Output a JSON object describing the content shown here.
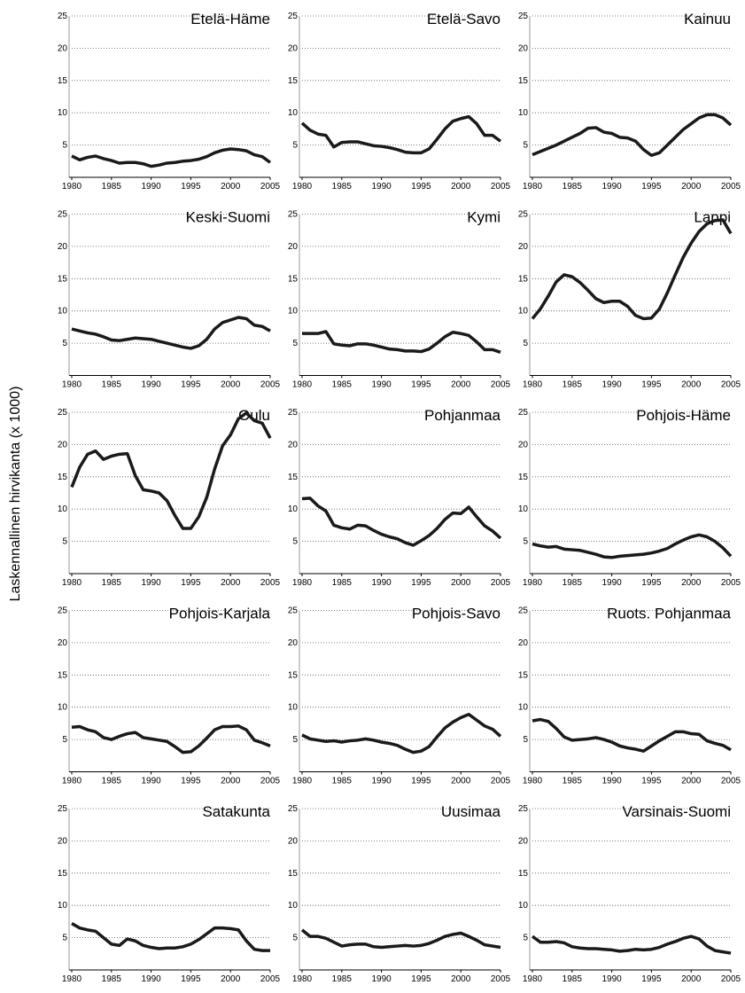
{
  "y_label": "Laskennallinen hirvikanta (x 1000)",
  "chart_data": [
    {
      "type": "line",
      "title": "Etelä-Häme",
      "x": [
        1980,
        1981,
        1982,
        1983,
        1984,
        1985,
        1986,
        1987,
        1988,
        1989,
        1990,
        1991,
        1992,
        1993,
        1994,
        1995,
        1996,
        1997,
        1998,
        1999,
        2000,
        2001,
        2002,
        2003,
        2004,
        2005
      ],
      "values": [
        3.3,
        2.7,
        3.1,
        3.3,
        2.9,
        2.6,
        2.2,
        2.3,
        2.3,
        2.1,
        1.7,
        1.9,
        2.2,
        2.3,
        2.5,
        2.6,
        2.8,
        3.2,
        3.8,
        4.2,
        4.4,
        4.3,
        4.1,
        3.5,
        3.2,
        2.3
      ],
      "color": "#1a1a1a",
      "xlim": [
        1980,
        2005
      ],
      "xticks": [
        1980,
        1985,
        1990,
        1995,
        2000,
        2005
      ],
      "ylim": [
        0,
        25
      ],
      "yticks": [
        5,
        10,
        15,
        20,
        25
      ],
      "grid": true
    },
    {
      "type": "line",
      "title": "Etelä-Savo",
      "x": [
        1980,
        1981,
        1982,
        1983,
        1984,
        1985,
        1986,
        1987,
        1988,
        1989,
        1990,
        1991,
        1992,
        1993,
        1994,
        1995,
        1996,
        1997,
        1998,
        1999,
        2000,
        2001,
        2002,
        2003,
        2004,
        2005
      ],
      "values": [
        8.4,
        7.3,
        6.7,
        6.5,
        4.7,
        5.4,
        5.5,
        5.5,
        5.2,
        4.9,
        4.8,
        4.6,
        4.3,
        3.9,
        3.8,
        3.8,
        4.4,
        5.9,
        7.5,
        8.7,
        9.1,
        9.4,
        8.3,
        6.5,
        6.5,
        5.6
      ],
      "color": "#1a1a1a",
      "xlim": [
        1980,
        2005
      ],
      "xticks": [
        1980,
        1985,
        1990,
        1995,
        2000,
        2005
      ],
      "ylim": [
        0,
        25
      ],
      "yticks": [
        5,
        10,
        15,
        20,
        25
      ],
      "grid": true
    },
    {
      "type": "line",
      "title": "Kainuu",
      "x": [
        1980,
        1981,
        1982,
        1983,
        1984,
        1985,
        1986,
        1987,
        1988,
        1989,
        1990,
        1991,
        1992,
        1993,
        1994,
        1995,
        1996,
        1997,
        1998,
        1999,
        2000,
        2001,
        2002,
        2003,
        2004,
        2005
      ],
      "values": [
        3.5,
        4.0,
        4.5,
        5.0,
        5.6,
        6.2,
        6.8,
        7.6,
        7.7,
        7.0,
        6.8,
        6.2,
        6.1,
        5.6,
        4.3,
        3.4,
        3.8,
        5.0,
        6.2,
        7.4,
        8.3,
        9.2,
        9.7,
        9.7,
        9.2,
        8.1
      ],
      "color": "#1a1a1a",
      "xlim": [
        1980,
        2005
      ],
      "xticks": [
        1980,
        1985,
        1990,
        1995,
        2000,
        2005
      ],
      "ylim": [
        0,
        25
      ],
      "yticks": [
        5,
        10,
        15,
        20,
        25
      ],
      "grid": true
    },
    {
      "type": "line",
      "title": "Keski-Suomi",
      "x": [
        1980,
        1981,
        1982,
        1983,
        1984,
        1985,
        1986,
        1987,
        1988,
        1989,
        1990,
        1991,
        1992,
        1993,
        1994,
        1995,
        1996,
        1997,
        1998,
        1999,
        2000,
        2001,
        2002,
        2003,
        2004,
        2005
      ],
      "values": [
        7.2,
        6.9,
        6.6,
        6.4,
        6.0,
        5.5,
        5.4,
        5.6,
        5.8,
        5.7,
        5.6,
        5.3,
        5.0,
        4.7,
        4.4,
        4.2,
        4.6,
        5.6,
        7.2,
        8.2,
        8.6,
        9.0,
        8.8,
        7.8,
        7.6,
        6.9
      ],
      "color": "#1a1a1a",
      "xlim": [
        1980,
        2005
      ],
      "xticks": [
        1980,
        1985,
        1990,
        1995,
        2000,
        2005
      ],
      "ylim": [
        0,
        25
      ],
      "yticks": [
        5,
        10,
        15,
        20,
        25
      ],
      "grid": true
    },
    {
      "type": "line",
      "title": "Kymi",
      "x": [
        1980,
        1981,
        1982,
        1983,
        1984,
        1985,
        1986,
        1987,
        1988,
        1989,
        1990,
        1991,
        1992,
        1993,
        1994,
        1995,
        1996,
        1997,
        1998,
        1999,
        2000,
        2001,
        2002,
        2003,
        2004,
        2005
      ],
      "values": [
        6.5,
        6.5,
        6.5,
        6.8,
        4.9,
        4.7,
        4.6,
        4.9,
        4.9,
        4.7,
        4.4,
        4.1,
        4.0,
        3.8,
        3.8,
        3.7,
        4.1,
        5.0,
        6.0,
        6.7,
        6.5,
        6.2,
        5.2,
        4.0,
        4.0,
        3.6
      ],
      "color": "#1a1a1a",
      "xlim": [
        1980,
        2005
      ],
      "xticks": [
        1980,
        1985,
        1990,
        1995,
        2000,
        2005
      ],
      "ylim": [
        0,
        25
      ],
      "yticks": [
        5,
        10,
        15,
        20,
        25
      ],
      "grid": true
    },
    {
      "type": "line",
      "title": "Lappi",
      "x": [
        1980,
        1981,
        1982,
        1983,
        1984,
        1985,
        1986,
        1987,
        1988,
        1989,
        1990,
        1991,
        1992,
        1993,
        1994,
        1995,
        1996,
        1997,
        1998,
        1999,
        2000,
        2001,
        2002,
        2003,
        2004,
        2005
      ],
      "values": [
        8.8,
        10.3,
        12.3,
        14.5,
        15.6,
        15.3,
        14.4,
        13.2,
        11.9,
        11.3,
        11.5,
        11.5,
        10.7,
        9.3,
        8.8,
        8.9,
        10.3,
        12.8,
        15.6,
        18.3,
        20.5,
        22.3,
        23.5,
        24.0,
        24.1,
        22.0
      ],
      "color": "#1a1a1a",
      "xlim": [
        1980,
        2005
      ],
      "xticks": [
        1980,
        1985,
        1990,
        1995,
        2000,
        2005
      ],
      "ylim": [
        0,
        25
      ],
      "yticks": [
        5,
        10,
        15,
        20,
        25
      ],
      "grid": true
    },
    {
      "type": "line",
      "title": "Oulu",
      "x": [
        1980,
        1981,
        1982,
        1983,
        1984,
        1985,
        1986,
        1987,
        1988,
        1989,
        1990,
        1991,
        1992,
        1993,
        1994,
        1995,
        1996,
        1997,
        1998,
        1999,
        2000,
        2001,
        2002,
        2003,
        2004,
        2005
      ],
      "values": [
        13.4,
        16.5,
        18.5,
        19.0,
        17.7,
        18.2,
        18.5,
        18.6,
        15.2,
        13.0,
        12.8,
        12.5,
        11.3,
        9.0,
        7.0,
        7.0,
        8.8,
        11.8,
        16.2,
        19.8,
        21.5,
        24.0,
        24.9,
        23.7,
        23.3,
        21.0
      ],
      "color": "#1a1a1a",
      "xlim": [
        1980,
        2005
      ],
      "xticks": [
        1980,
        1985,
        1990,
        1995,
        2000,
        2005
      ],
      "ylim": [
        0,
        25
      ],
      "yticks": [
        5,
        10,
        15,
        20,
        25
      ],
      "grid": true
    },
    {
      "type": "line",
      "title": "Pohjanmaa",
      "x": [
        1980,
        1981,
        1982,
        1983,
        1984,
        1985,
        1986,
        1987,
        1988,
        1989,
        1990,
        1991,
        1992,
        1993,
        1994,
        1995,
        1996,
        1997,
        1998,
        1999,
        2000,
        2001,
        2002,
        2003,
        2004,
        2005
      ],
      "values": [
        11.6,
        11.7,
        10.5,
        9.7,
        7.5,
        7.1,
        6.9,
        7.5,
        7.4,
        6.7,
        6.1,
        5.7,
        5.4,
        4.8,
        4.4,
        5.1,
        5.9,
        7.0,
        8.4,
        9.4,
        9.3,
        10.3,
        8.8,
        7.4,
        6.6,
        5.5
      ],
      "color": "#1a1a1a",
      "xlim": [
        1980,
        2005
      ],
      "xticks": [
        1980,
        1985,
        1990,
        1995,
        2000,
        2005
      ],
      "ylim": [
        0,
        25
      ],
      "yticks": [
        5,
        10,
        15,
        20,
        25
      ],
      "grid": true
    },
    {
      "type": "line",
      "title": "Pohjois-Häme",
      "x": [
        1980,
        1981,
        1982,
        1983,
        1984,
        1985,
        1986,
        1987,
        1988,
        1989,
        1990,
        1991,
        1992,
        1993,
        1994,
        1995,
        1996,
        1997,
        1998,
        1999,
        2000,
        2001,
        2002,
        2003,
        2004,
        2005
      ],
      "values": [
        4.6,
        4.3,
        4.1,
        4.2,
        3.8,
        3.7,
        3.6,
        3.3,
        3.0,
        2.6,
        2.5,
        2.7,
        2.8,
        2.9,
        3.0,
        3.2,
        3.5,
        3.9,
        4.6,
        5.2,
        5.7,
        6.0,
        5.7,
        5.0,
        4.0,
        2.7
      ],
      "color": "#1a1a1a",
      "xlim": [
        1980,
        2005
      ],
      "xticks": [
        1980,
        1985,
        1990,
        1995,
        2000,
        2005
      ],
      "ylim": [
        0,
        25
      ],
      "yticks": [
        5,
        10,
        15,
        20,
        25
      ],
      "grid": true
    },
    {
      "type": "line",
      "title": "Pohjois-Karjala",
      "x": [
        1980,
        1981,
        1982,
        1983,
        1984,
        1985,
        1986,
        1987,
        1988,
        1989,
        1990,
        1991,
        1992,
        1993,
        1994,
        1995,
        1996,
        1997,
        1998,
        1999,
        2000,
        2001,
        2002,
        2003,
        2004,
        2005
      ],
      "values": [
        6.9,
        7.0,
        6.5,
        6.2,
        5.3,
        5.0,
        5.5,
        5.9,
        6.1,
        5.3,
        5.1,
        4.9,
        4.7,
        3.9,
        3.0,
        3.1,
        4.0,
        5.2,
        6.5,
        7.0,
        7.0,
        7.1,
        6.5,
        4.9,
        4.5,
        4.0
      ],
      "color": "#1a1a1a",
      "xlim": [
        1980,
        2005
      ],
      "xticks": [
        1980,
        1985,
        1990,
        1995,
        2000,
        2005
      ],
      "ylim": [
        0,
        25
      ],
      "yticks": [
        5,
        10,
        15,
        20,
        25
      ],
      "grid": true
    },
    {
      "type": "line",
      "title": "Pohjois-Savo",
      "x": [
        1980,
        1981,
        1982,
        1983,
        1984,
        1985,
        1986,
        1987,
        1988,
        1989,
        1990,
        1991,
        1992,
        1993,
        1994,
        1995,
        1996,
        1997,
        1998,
        1999,
        2000,
        2001,
        2002,
        2003,
        2004,
        2005
      ],
      "values": [
        5.7,
        5.1,
        4.9,
        4.7,
        4.8,
        4.6,
        4.8,
        4.9,
        5.1,
        4.9,
        4.6,
        4.4,
        4.1,
        3.5,
        3.0,
        3.2,
        3.9,
        5.4,
        6.8,
        7.7,
        8.4,
        8.9,
        8.0,
        7.1,
        6.6,
        5.5
      ],
      "color": "#1a1a1a",
      "xlim": [
        1980,
        2005
      ],
      "xticks": [
        1980,
        1985,
        1990,
        1995,
        2000,
        2005
      ],
      "ylim": [
        0,
        25
      ],
      "yticks": [
        5,
        10,
        15,
        20,
        25
      ],
      "grid": true
    },
    {
      "type": "line",
      "title": "Ruots. Pohjanmaa",
      "x": [
        1980,
        1981,
        1982,
        1983,
        1984,
        1985,
        1986,
        1987,
        1988,
        1989,
        1990,
        1991,
        1992,
        1993,
        1994,
        1995,
        1996,
        1997,
        1998,
        1999,
        2000,
        2001,
        2002,
        2003,
        2004,
        2005
      ],
      "values": [
        7.9,
        8.1,
        7.8,
        6.7,
        5.4,
        4.9,
        5.0,
        5.1,
        5.3,
        5.0,
        4.6,
        4.0,
        3.7,
        3.5,
        3.2,
        4.0,
        4.8,
        5.5,
        6.2,
        6.2,
        5.9,
        5.8,
        4.8,
        4.4,
        4.1,
        3.4
      ],
      "color": "#1a1a1a",
      "xlim": [
        1980,
        2005
      ],
      "xticks": [
        1980,
        1985,
        1990,
        1995,
        2000,
        2005
      ],
      "ylim": [
        0,
        25
      ],
      "yticks": [
        5,
        10,
        15,
        20,
        25
      ],
      "grid": true
    },
    {
      "type": "line",
      "title": "Satakunta",
      "x": [
        1980,
        1981,
        1982,
        1983,
        1984,
        1985,
        1986,
        1987,
        1988,
        1989,
        1990,
        1991,
        1992,
        1993,
        1994,
        1995,
        1996,
        1997,
        1998,
        1999,
        2000,
        2001,
        2002,
        2003,
        2004,
        2005
      ],
      "values": [
        7.2,
        6.5,
        6.2,
        6.0,
        5.0,
        4.0,
        3.8,
        4.8,
        4.5,
        3.8,
        3.5,
        3.3,
        3.4,
        3.4,
        3.6,
        4.0,
        4.7,
        5.6,
        6.5,
        6.5,
        6.4,
        6.2,
        4.5,
        3.2,
        3.0,
        3.0
      ],
      "color": "#1a1a1a",
      "xlim": [
        1980,
        2005
      ],
      "xticks": [
        1980,
        1985,
        1990,
        1995,
        2000,
        2005
      ],
      "ylim": [
        0,
        25
      ],
      "yticks": [
        5,
        10,
        15,
        20,
        25
      ],
      "grid": true
    },
    {
      "type": "line",
      "title": "Uusimaa",
      "x": [
        1980,
        1981,
        1982,
        1983,
        1984,
        1985,
        1986,
        1987,
        1988,
        1989,
        1990,
        1991,
        1992,
        1993,
        1994,
        1995,
        1996,
        1997,
        1998,
        1999,
        2000,
        2001,
        2002,
        2003,
        2004,
        2005
      ],
      "values": [
        6.2,
        5.2,
        5.2,
        4.9,
        4.3,
        3.7,
        3.9,
        4.0,
        4.0,
        3.6,
        3.5,
        3.6,
        3.7,
        3.8,
        3.7,
        3.8,
        4.1,
        4.6,
        5.2,
        5.5,
        5.7,
        5.2,
        4.6,
        3.9,
        3.7,
        3.5
      ],
      "color": "#1a1a1a",
      "xlim": [
        1980,
        2005
      ],
      "xticks": [
        1980,
        1985,
        1990,
        1995,
        2000,
        2005
      ],
      "ylim": [
        0,
        25
      ],
      "yticks": [
        5,
        10,
        15,
        20,
        25
      ],
      "grid": true
    },
    {
      "type": "line",
      "title": "Varsinais-Suomi",
      "x": [
        1980,
        1981,
        1982,
        1983,
        1984,
        1985,
        1986,
        1987,
        1988,
        1989,
        1990,
        1991,
        1992,
        1993,
        1994,
        1995,
        1996,
        1997,
        1998,
        1999,
        2000,
        2001,
        2002,
        2003,
        2004,
        2005
      ],
      "values": [
        5.2,
        4.3,
        4.3,
        4.4,
        4.2,
        3.6,
        3.4,
        3.3,
        3.3,
        3.2,
        3.1,
        2.9,
        3.0,
        3.2,
        3.1,
        3.2,
        3.5,
        4.0,
        4.4,
        4.9,
        5.2,
        4.8,
        3.7,
        3.0,
        2.8,
        2.6
      ],
      "color": "#1a1a1a",
      "xlim": [
        1980,
        2005
      ],
      "xticks": [
        1980,
        1985,
        1990,
        1995,
        2000,
        2005
      ],
      "ylim": [
        0,
        25
      ],
      "yticks": [
        5,
        10,
        15,
        20,
        25
      ],
      "grid": true
    }
  ]
}
